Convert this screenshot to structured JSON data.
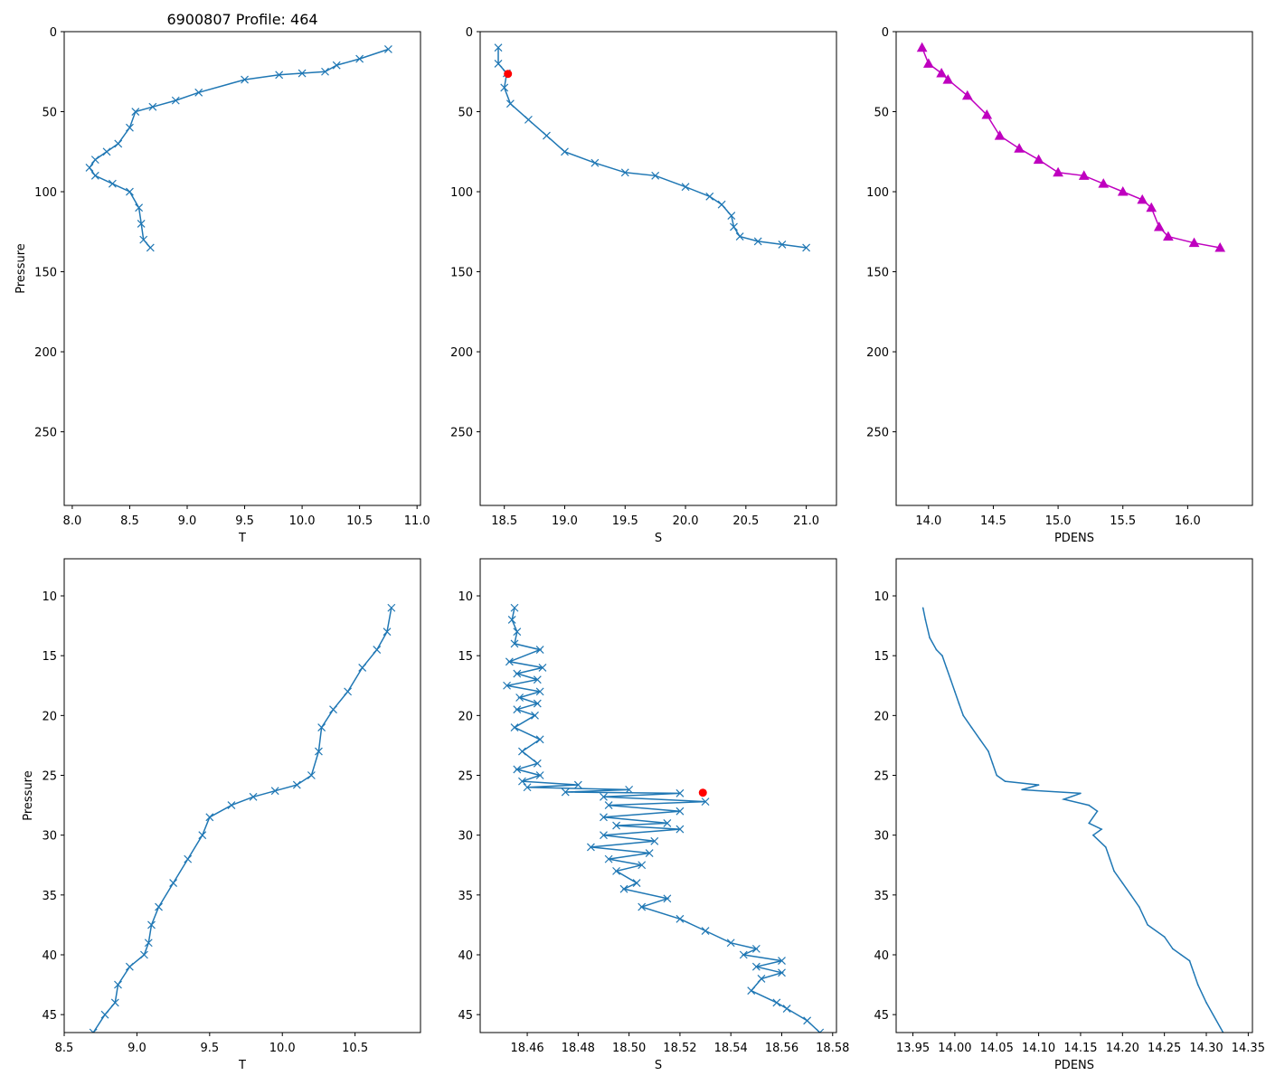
{
  "figure_title": "6900807 Profile: 464",
  "colors": {
    "series": "#1f77b4",
    "pdens": "#bf00bf",
    "highlight": "#ff0000"
  },
  "chart_data": [
    {
      "id": "top-T",
      "type": "line",
      "marker": "x",
      "title": "6900807 Profile: 464",
      "xlabel": "T",
      "ylabel": "Pressure",
      "xlim": [
        7.93,
        11.03
      ],
      "ylim": [
        296,
        0
      ],
      "y_inverted": true,
      "xticks": [
        "8.0",
        "8.5",
        "9.0",
        "9.5",
        "10.0",
        "10.5",
        "11.0"
      ],
      "yticks": [
        "0",
        "50",
        "100",
        "150",
        "200",
        "250"
      ],
      "x": [
        10.75,
        10.5,
        10.3,
        10.2,
        10.0,
        9.8,
        9.5,
        9.1,
        8.9,
        8.7,
        8.55,
        8.5,
        8.4,
        8.3,
        8.2,
        8.15,
        8.2,
        8.35,
        8.5,
        8.58,
        8.6,
        8.62,
        8.68
      ],
      "y": [
        11,
        17,
        21,
        25,
        26,
        27,
        30,
        38,
        43,
        47,
        50,
        60,
        70,
        75,
        80,
        85,
        90,
        95,
        100,
        110,
        120,
        130,
        135
      ],
      "highlight": null
    },
    {
      "id": "top-S",
      "type": "line",
      "marker": "x",
      "title": "",
      "xlabel": "S",
      "ylabel": "",
      "xlim": [
        18.3,
        21.25
      ],
      "ylim": [
        296,
        0
      ],
      "y_inverted": true,
      "xticks": [
        "18.5",
        "19.0",
        "19.5",
        "20.0",
        "20.5",
        "21.0"
      ],
      "yticks": [
        "0",
        "50",
        "100",
        "150",
        "200",
        "250"
      ],
      "x": [
        18.45,
        18.45,
        18.52,
        18.5,
        18.55,
        18.7,
        18.85,
        19.0,
        19.25,
        19.5,
        19.75,
        20.0,
        20.2,
        20.3,
        20.38,
        20.4,
        20.45,
        20.6,
        20.8,
        21.0
      ],
      "y": [
        10,
        20,
        26,
        35,
        45,
        55,
        65,
        75,
        82,
        88,
        90,
        97,
        103,
        108,
        115,
        122,
        128,
        131,
        133,
        135
      ],
      "highlight": {
        "x": 18.53,
        "y": 26.4
      }
    },
    {
      "id": "top-PDENS",
      "type": "line",
      "marker": "^",
      "title": "",
      "xlabel": "PDENS",
      "ylabel": "",
      "xlim": [
        13.75,
        16.5
      ],
      "ylim": [
        296,
        0
      ],
      "y_inverted": true,
      "xticks": [
        "14.0",
        "14.5",
        "15.0",
        "15.5",
        "16.0"
      ],
      "yticks": [
        "0",
        "50",
        "100",
        "150",
        "200",
        "250"
      ],
      "x": [
        13.95,
        14.0,
        14.1,
        14.15,
        14.3,
        14.45,
        14.55,
        14.7,
        14.85,
        15.0,
        15.2,
        15.35,
        15.5,
        15.65,
        15.72,
        15.78,
        15.85,
        16.05,
        16.25
      ],
      "y": [
        10,
        20,
        26,
        30,
        40,
        52,
        65,
        73,
        80,
        88,
        90,
        95,
        100,
        105,
        110,
        122,
        128,
        132,
        135
      ],
      "highlight": null
    },
    {
      "id": "bottom-T",
      "type": "line",
      "marker": "x",
      "title": "",
      "xlabel": "T",
      "ylabel": "Pressure",
      "xlim": [
        8.5,
        10.95
      ],
      "ylim": [
        46.5,
        6.9
      ],
      "y_inverted": true,
      "xticks": [
        "8.5",
        "9.0",
        "9.5",
        "10.0",
        "10.5"
      ],
      "yticks": [
        "10",
        "15",
        "20",
        "25",
        "30",
        "35",
        "40",
        "45"
      ],
      "x": [
        10.75,
        10.72,
        10.65,
        10.55,
        10.45,
        10.35,
        10.27,
        10.25,
        10.2,
        10.1,
        9.95,
        9.8,
        9.65,
        9.5,
        9.45,
        9.35,
        9.25,
        9.15,
        9.1,
        9.08,
        9.05,
        8.95,
        8.87,
        8.85,
        8.78,
        8.7
      ],
      "y": [
        11,
        13,
        14.5,
        16,
        18,
        19.5,
        21,
        23,
        25,
        25.8,
        26.3,
        26.8,
        27.5,
        28.5,
        30,
        32,
        34,
        36,
        37.5,
        39,
        40,
        41,
        42.5,
        44,
        45,
        46.5
      ],
      "highlight": null
    },
    {
      "id": "bottom-S",
      "type": "line",
      "marker": "x",
      "title": "",
      "xlabel": "S",
      "ylabel": "",
      "xlim": [
        18.4415,
        18.5815
      ],
      "ylim": [
        46.5,
        6.9
      ],
      "y_inverted": true,
      "xticks": [
        "18.46",
        "18.48",
        "18.50",
        "18.52",
        "18.54",
        "18.56",
        "18.58"
      ],
      "yticks": [
        "10",
        "15",
        "20",
        "25",
        "30",
        "35",
        "40",
        "45"
      ],
      "x": [
        18.455,
        18.454,
        18.456,
        18.455,
        18.465,
        18.453,
        18.466,
        18.456,
        18.464,
        18.452,
        18.465,
        18.457,
        18.464,
        18.456,
        18.463,
        18.455,
        18.465,
        18.458,
        18.464,
        18.456,
        18.465,
        18.458,
        18.48,
        18.46,
        18.5,
        18.475,
        18.52,
        18.49,
        18.53,
        18.492,
        18.52,
        18.49,
        18.515,
        18.495,
        18.52,
        18.49,
        18.51,
        18.485,
        18.508,
        18.492,
        18.505,
        18.495,
        18.503,
        18.498,
        18.515,
        18.505,
        18.52,
        18.53,
        18.54,
        18.55,
        18.545,
        18.56,
        18.55,
        18.56,
        18.552,
        18.548,
        18.558,
        18.562,
        18.57,
        18.575
      ],
      "y": [
        11,
        12,
        13,
        14,
        14.5,
        15.5,
        16,
        16.5,
        17,
        17.5,
        18,
        18.5,
        19,
        19.5,
        20,
        21,
        22,
        23,
        24,
        24.5,
        25,
        25.5,
        25.8,
        26,
        26.2,
        26.4,
        26.5,
        26.8,
        27.2,
        27.5,
        28,
        28.5,
        29,
        29.2,
        29.5,
        30,
        30.5,
        31,
        31.5,
        32,
        32.5,
        33,
        34,
        34.5,
        35.3,
        36,
        37,
        38,
        39,
        39.5,
        40,
        40.5,
        41,
        41.5,
        42,
        43,
        44,
        44.5,
        45.5,
        46.5
      ],
      "highlight": {
        "x": 18.529,
        "y": 26.45
      }
    },
    {
      "id": "bottom-PDENS",
      "type": "line",
      "marker": "none",
      "title": "",
      "xlabel": "PDENS",
      "ylabel": "",
      "xlim": [
        13.93,
        14.355
      ],
      "ylim": [
        46.5,
        6.9
      ],
      "y_inverted": true,
      "xticks": [
        "13.95",
        "14.00",
        "14.05",
        "14.10",
        "14.15",
        "14.20",
        "14.25",
        "14.30",
        "14.35"
      ],
      "yticks": [
        "10",
        "15",
        "20",
        "25",
        "30",
        "35",
        "40",
        "45"
      ],
      "x": [
        13.962,
        13.965,
        13.97,
        13.978,
        13.985,
        13.99,
        13.995,
        14.0,
        14.005,
        14.01,
        14.02,
        14.03,
        14.04,
        14.045,
        14.05,
        14.06,
        14.1,
        14.08,
        14.15,
        14.13,
        14.16,
        14.17,
        14.16,
        14.175,
        14.165,
        14.18,
        14.185,
        14.19,
        14.2,
        14.21,
        14.22,
        14.23,
        14.25,
        14.26,
        14.27,
        14.28,
        14.285,
        14.29,
        14.3,
        14.32
      ],
      "y": [
        11,
        12,
        13.5,
        14.5,
        15,
        16,
        17,
        18,
        19,
        20,
        21,
        22,
        23,
        24,
        25,
        25.5,
        25.8,
        26.2,
        26.5,
        27,
        27.5,
        28,
        29,
        29.5,
        30,
        31,
        32,
        33,
        34,
        35,
        36,
        37.5,
        38.5,
        39.5,
        40,
        40.5,
        41.5,
        42.5,
        44,
        46.5
      ],
      "highlight": null
    }
  ]
}
